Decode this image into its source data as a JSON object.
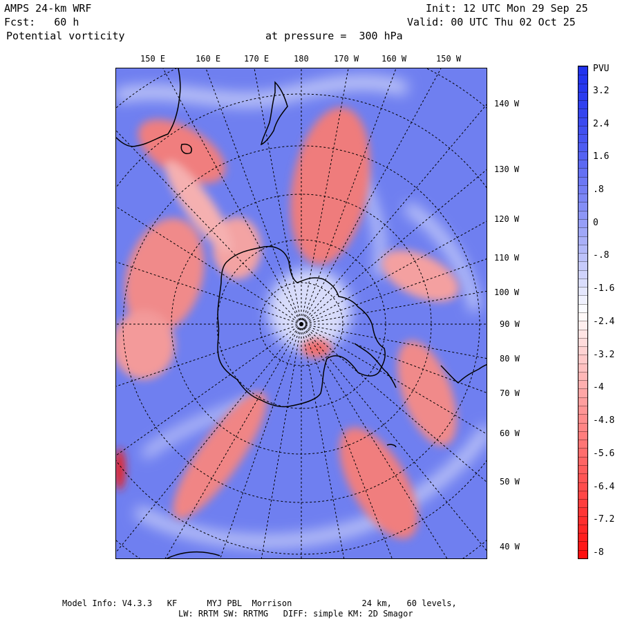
{
  "header": {
    "model": "AMPS 24-km WRF",
    "fcst": "Fcst:   60 h",
    "field": "Potential vorticity",
    "level": "at pressure =  300 hPa",
    "init": "Init: 12 UTC Mon 29 Sep 25",
    "valid": "Valid: 00 UTC Thu 02 Oct 25"
  },
  "map": {
    "top_labels": [
      "150 E",
      "160 E",
      "170 E",
      "180",
      "170 W",
      "160 W",
      "150 W"
    ],
    "right_labels": [
      "140 W",
      "130 W",
      "120 W",
      "110 W",
      "100 W",
      "90 W",
      "80 W",
      "70 W",
      "60 W",
      "50 W",
      "40 W"
    ]
  },
  "colorbar": {
    "unit": "PVU",
    "ticks": [
      "3.2",
      "2.4",
      "1.6",
      ".8",
      "0",
      "-.8",
      "-1.6",
      "-2.4",
      "-3.2",
      "-4",
      "-4.8",
      "-5.6",
      "-6.4",
      "-7.2",
      "-8"
    ],
    "range": [
      -8,
      3.6
    ],
    "top_color": "#2233ee",
    "bottom_color": "#ff1010",
    "mid_color": "#ffffff"
  },
  "footer": {
    "line1": "Model Info: V4.3.3   KF      MYJ PBL  Morrison              24 km,   60 levels,",
    "line2": "LW: RRTM SW: RRTMG   DIFF: simple KM: 2D Smagor"
  }
}
